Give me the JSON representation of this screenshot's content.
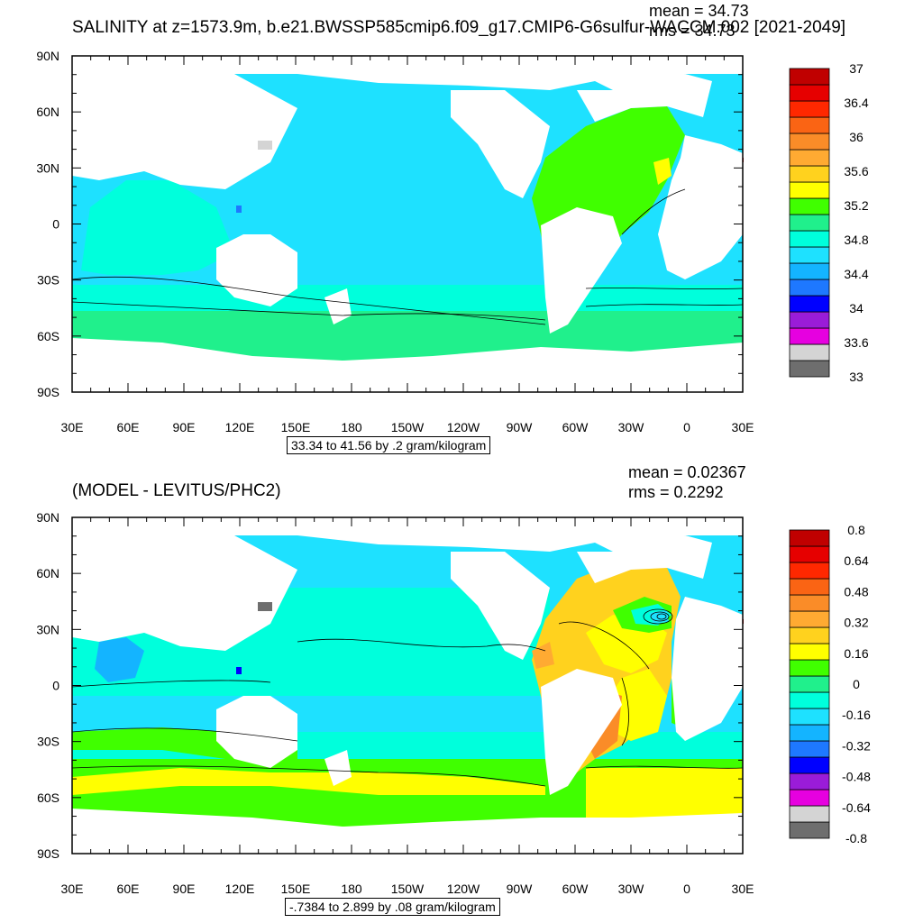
{
  "chart_data": [
    {
      "type": "heatmap",
      "title": "SALINITY at z=1573.9m, b.e21.BWSSP585cmip6.f09_g17.CMIP6-G6sulfur-WACCM.002 [2021-2049]",
      "stats": [
        "mean = 34.73",
        "rms = 34.73"
      ],
      "range_note": "33.34 to 41.56 by .2 gram/kilogram",
      "x_ticks": [
        "30E",
        "60E",
        "90E",
        "120E",
        "150E",
        "180",
        "150W",
        "120W",
        "90W",
        "60W",
        "30W",
        "0",
        "30E"
      ],
      "y_ticks": [
        "90N",
        "60N",
        "30N",
        "0",
        "30S",
        "60S",
        "90S"
      ],
      "xlim": [
        30,
        390
      ],
      "ylim": [
        -90,
        90
      ],
      "colorbar": {
        "colors": [
          "#6e6e6e",
          "#d4d4d4",
          "#e600e0",
          "#9a1cd8",
          "#0000ff",
          "#1e78ff",
          "#14b4ff",
          "#1ee1ff",
          "#00ffdc",
          "#20f08c",
          "#40ff00",
          "#ffff00",
          "#ffd21e",
          "#ffaa32",
          "#fa8c28",
          "#fa6414",
          "#ff2800",
          "#e60000",
          "#c00000"
        ],
        "labels": [
          "33",
          "33.6",
          "34",
          "34.4",
          "34.8",
          "35.2",
          "35.6",
          "36",
          "36.4",
          "37"
        ]
      }
    },
    {
      "type": "heatmap",
      "title": "(MODEL - LEVITUS/PHC2)",
      "stats": [
        "mean = 0.02367",
        "rms = 0.2292"
      ],
      "range_note": "-.7384 to 2.899 by .08 gram/kilogram",
      "x_ticks": [
        "30E",
        "60E",
        "90E",
        "120E",
        "150E",
        "180",
        "150W",
        "120W",
        "90W",
        "60W",
        "30W",
        "0",
        "30E"
      ],
      "y_ticks": [
        "90N",
        "60N",
        "30N",
        "0",
        "30S",
        "60S",
        "90S"
      ],
      "xlim": [
        30,
        390
      ],
      "ylim": [
        -90,
        90
      ],
      "colorbar": {
        "colors": [
          "#6e6e6e",
          "#d4d4d4",
          "#e600e0",
          "#9a1cd8",
          "#0000ff",
          "#1e78ff",
          "#14b4ff",
          "#1ee1ff",
          "#00ffdc",
          "#20f08c",
          "#40ff00",
          "#ffff00",
          "#ffd21e",
          "#ffaa32",
          "#fa8c28",
          "#fa6414",
          "#ff2800",
          "#e60000",
          "#c00000"
        ],
        "labels": [
          "-0.8",
          "-0.64",
          "-0.48",
          "-0.32",
          "-0.16",
          "0",
          "0.16",
          "0.32",
          "0.48",
          "0.64",
          "0.8"
        ]
      }
    }
  ]
}
